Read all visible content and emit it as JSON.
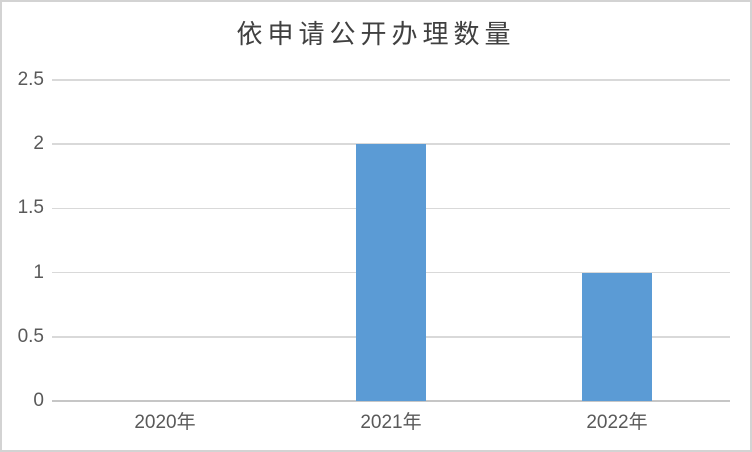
{
  "chart_data": {
    "type": "bar",
    "title": "依申请公开办理数量",
    "categories": [
      "2020年",
      "2021年",
      "2022年"
    ],
    "values": [
      0,
      2,
      1
    ],
    "xlabel": "",
    "ylabel": "",
    "ylim": [
      0,
      2.5
    ],
    "ytick_interval": 0.5,
    "yticks": [
      0,
      0.5,
      1,
      1.5,
      2,
      2.5
    ],
    "ytick_labels": [
      "0",
      "0.5",
      "1",
      "1.5",
      "2",
      "2.5"
    ],
    "grid": true,
    "legend": false,
    "colors": {
      "bar": "#5b9bd5",
      "gridline": "#d9d9d9",
      "axis_line": "#c6c6c6",
      "tick_label": "#595959",
      "title": "#404040",
      "background": "#ffffff",
      "border": "#d3d3d3"
    }
  }
}
